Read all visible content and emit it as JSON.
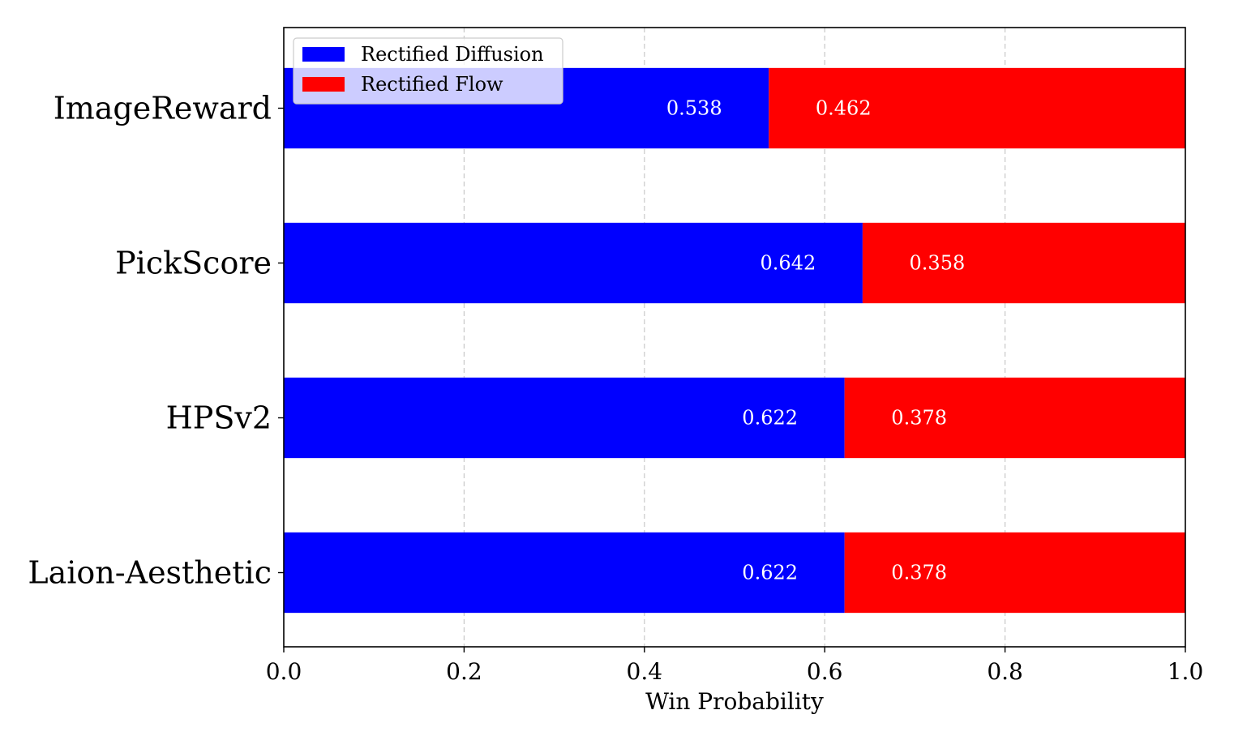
{
  "chart_data": {
    "type": "bar",
    "orientation": "horizontal",
    "stacked": true,
    "categories": [
      "ImageReward",
      "PickScore",
      "HPSv2",
      "Laion-Aesthetic"
    ],
    "series": [
      {
        "name": "Rectified Diffusion",
        "color": "#0000ff",
        "values": [
          0.538,
          0.642,
          0.622,
          0.622
        ]
      },
      {
        "name": "Rectified Flow",
        "color": "#ff0000",
        "values": [
          0.462,
          0.358,
          0.378,
          0.378
        ]
      }
    ],
    "data_labels": [
      [
        "0.538",
        "0.642",
        "0.622",
        "0.622"
      ],
      [
        "0.462",
        "0.358",
        "0.378",
        "0.378"
      ]
    ],
    "xlabel": "Win Probability",
    "xlim": [
      0.0,
      1.0
    ],
    "xticks": [
      "0.0",
      "0.2",
      "0.4",
      "0.6",
      "0.8",
      "1.0"
    ],
    "grid": "vertical dashed",
    "legend": {
      "position": "top-left"
    }
  }
}
